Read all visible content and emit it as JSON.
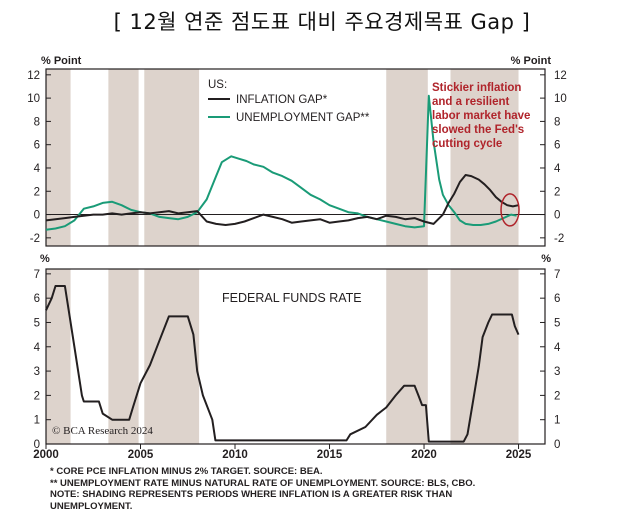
{
  "page_title": "[ 12월 연준 점도표 대비 주요경제목표 Gap ]",
  "colors": {
    "inflation": "#231f20",
    "unemployment": "#1a9b77",
    "shade": "#ddd3cc",
    "annotation": "#b0242b",
    "axis": "#231f20"
  },
  "chart_data": [
    {
      "type": "line",
      "units_left": "% Point",
      "units_right": "% Point",
      "ylim": [
        -2.7,
        12.5
      ],
      "yticks": [
        -2,
        0,
        2,
        4,
        6,
        8,
        10,
        12
      ],
      "legend_title": "US:",
      "series": [
        {
          "name": "INFLATION GAP*",
          "color": "#231f20",
          "points": [
            [
              2000.0,
              -0.5
            ],
            [
              2000.5,
              -0.4
            ],
            [
              2001.0,
              -0.3
            ],
            [
              2001.5,
              -0.2
            ],
            [
              2002.0,
              -0.1
            ],
            [
              2002.5,
              0.0
            ],
            [
              2003.0,
              0.0
            ],
            [
              2003.5,
              0.1
            ],
            [
              2004.0,
              0.0
            ],
            [
              2004.5,
              0.1
            ],
            [
              2005.0,
              0.2
            ],
            [
              2005.5,
              0.1
            ],
            [
              2006.0,
              0.2
            ],
            [
              2006.5,
              0.3
            ],
            [
              2007.0,
              0.1
            ],
            [
              2007.5,
              0.2
            ],
            [
              2008.0,
              0.3
            ],
            [
              2008.5,
              -0.6
            ],
            [
              2009.0,
              -0.8
            ],
            [
              2009.5,
              -0.9
            ],
            [
              2010.0,
              -0.8
            ],
            [
              2010.5,
              -0.6
            ],
            [
              2011.0,
              -0.3
            ],
            [
              2011.5,
              0.0
            ],
            [
              2012.0,
              -0.2
            ],
            [
              2012.5,
              -0.4
            ],
            [
              2013.0,
              -0.7
            ],
            [
              2013.5,
              -0.6
            ],
            [
              2014.0,
              -0.5
            ],
            [
              2014.5,
              -0.4
            ],
            [
              2015.0,
              -0.7
            ],
            [
              2015.5,
              -0.6
            ],
            [
              2016.0,
              -0.5
            ],
            [
              2016.5,
              -0.3
            ],
            [
              2017.0,
              -0.2
            ],
            [
              2017.5,
              -0.4
            ],
            [
              2018.0,
              -0.1
            ],
            [
              2018.5,
              -0.2
            ],
            [
              2019.0,
              -0.4
            ],
            [
              2019.5,
              -0.3
            ],
            [
              2020.0,
              -0.6
            ],
            [
              2020.5,
              -0.8
            ],
            [
              2021.0,
              0.0
            ],
            [
              2021.3,
              1.0
            ],
            [
              2021.6,
              1.8
            ],
            [
              2021.9,
              2.8
            ],
            [
              2022.2,
              3.4
            ],
            [
              2022.5,
              3.3
            ],
            [
              2022.9,
              3.0
            ],
            [
              2023.2,
              2.6
            ],
            [
              2023.5,
              2.1
            ],
            [
              2023.8,
              1.5
            ],
            [
              2024.1,
              1.1
            ],
            [
              2024.4,
              0.8
            ],
            [
              2024.7,
              0.7
            ],
            [
              2025.0,
              0.8
            ]
          ]
        },
        {
          "name": "UNEMPLOYMENT GAP**",
          "color": "#1a9b77",
          "points": [
            [
              2000.0,
              -1.3
            ],
            [
              2000.5,
              -1.2
            ],
            [
              2001.0,
              -1.0
            ],
            [
              2001.5,
              -0.5
            ],
            [
              2002.0,
              0.5
            ],
            [
              2002.5,
              0.7
            ],
            [
              2003.0,
              1.0
            ],
            [
              2003.5,
              1.1
            ],
            [
              2004.0,
              0.8
            ],
            [
              2004.5,
              0.4
            ],
            [
              2005.0,
              0.2
            ],
            [
              2005.5,
              0.1
            ],
            [
              2006.0,
              -0.2
            ],
            [
              2006.5,
              -0.3
            ],
            [
              2007.0,
              -0.4
            ],
            [
              2007.5,
              -0.2
            ],
            [
              2008.0,
              0.2
            ],
            [
              2008.5,
              1.3
            ],
            [
              2009.0,
              3.3
            ],
            [
              2009.3,
              4.5
            ],
            [
              2009.8,
              5.0
            ],
            [
              2010.2,
              4.8
            ],
            [
              2010.6,
              4.6
            ],
            [
              2011.0,
              4.3
            ],
            [
              2011.5,
              4.1
            ],
            [
              2012.0,
              3.6
            ],
            [
              2012.5,
              3.3
            ],
            [
              2013.0,
              2.9
            ],
            [
              2013.5,
              2.3
            ],
            [
              2014.0,
              1.7
            ],
            [
              2014.5,
              1.3
            ],
            [
              2015.0,
              0.8
            ],
            [
              2015.5,
              0.5
            ],
            [
              2016.0,
              0.2
            ],
            [
              2016.5,
              0.1
            ],
            [
              2017.0,
              -0.2
            ],
            [
              2017.5,
              -0.4
            ],
            [
              2018.0,
              -0.6
            ],
            [
              2018.5,
              -0.8
            ],
            [
              2019.0,
              -1.0
            ],
            [
              2019.5,
              -1.1
            ],
            [
              2020.0,
              -1.0
            ],
            [
              2020.25,
              10.2
            ],
            [
              2020.5,
              6.3
            ],
            [
              2020.8,
              3.0
            ],
            [
              2021.0,
              1.7
            ],
            [
              2021.3,
              0.8
            ],
            [
              2021.6,
              0.2
            ],
            [
              2021.9,
              -0.5
            ],
            [
              2022.2,
              -0.8
            ],
            [
              2022.6,
              -0.9
            ],
            [
              2023.0,
              -0.9
            ],
            [
              2023.4,
              -0.8
            ],
            [
              2023.8,
              -0.6
            ],
            [
              2024.2,
              -0.3
            ],
            [
              2024.6,
              0.0
            ],
            [
              2024.9,
              -0.1
            ]
          ]
        }
      ],
      "annotation": [
        "Stickier inflation",
        "and a resilient",
        "labor market have",
        "slowed the Fed's",
        "cutting cycle"
      ]
    },
    {
      "type": "line",
      "title": "FEDERAL FUNDS RATE",
      "units_left": "%",
      "units_right": "%",
      "ylim": [
        0,
        7.2
      ],
      "yticks": [
        0,
        1,
        2,
        3,
        4,
        5,
        6,
        7
      ],
      "xlim": [
        2000,
        2026.4
      ],
      "xticks": [
        2000,
        2005,
        2010,
        2015,
        2020,
        2025
      ],
      "series": [
        {
          "name": "Federal Funds Rate",
          "color": "#231f20",
          "points": [
            [
              2000.0,
              5.5
            ],
            [
              2000.3,
              6.0
            ],
            [
              2000.5,
              6.5
            ],
            [
              2001.0,
              6.5
            ],
            [
              2001.2,
              5.5
            ],
            [
              2001.5,
              4.0
            ],
            [
              2001.9,
              2.0
            ],
            [
              2002.0,
              1.75
            ],
            [
              2002.8,
              1.75
            ],
            [
              2003.0,
              1.25
            ],
            [
              2003.5,
              1.0
            ],
            [
              2004.4,
              1.0
            ],
            [
              2004.6,
              1.5
            ],
            [
              2005.0,
              2.5
            ],
            [
              2005.5,
              3.25
            ],
            [
              2006.0,
              4.25
            ],
            [
              2006.5,
              5.25
            ],
            [
              2007.5,
              5.25
            ],
            [
              2007.8,
              4.5
            ],
            [
              2008.0,
              3.0
            ],
            [
              2008.3,
              2.0
            ],
            [
              2008.8,
              1.0
            ],
            [
              2008.96,
              0.15
            ],
            [
              2015.9,
              0.15
            ],
            [
              2016.1,
              0.4
            ],
            [
              2016.9,
              0.7
            ],
            [
              2017.5,
              1.2
            ],
            [
              2018.0,
              1.5
            ],
            [
              2018.5,
              2.0
            ],
            [
              2018.95,
              2.4
            ],
            [
              2019.5,
              2.4
            ],
            [
              2019.7,
              2.0
            ],
            [
              2019.9,
              1.6
            ],
            [
              2020.1,
              1.6
            ],
            [
              2020.25,
              0.1
            ],
            [
              2022.1,
              0.1
            ],
            [
              2022.3,
              0.4
            ],
            [
              2022.6,
              1.8
            ],
            [
              2022.9,
              3.2
            ],
            [
              2023.1,
              4.4
            ],
            [
              2023.4,
              5.0
            ],
            [
              2023.6,
              5.33
            ],
            [
              2024.65,
              5.33
            ],
            [
              2024.8,
              4.85
            ],
            [
              2025.0,
              4.5
            ]
          ]
        }
      ]
    }
  ],
  "shading": [
    [
      2000.0,
      2001.3
    ],
    [
      2003.3,
      2004.9
    ],
    [
      2005.2,
      2008.1
    ],
    [
      2018.0,
      2020.2
    ],
    [
      2021.4,
      2025.0
    ]
  ],
  "credit": "© BCA Research 2024",
  "notes": [
    "* CORE PCE INFLATION MINUS 2% TARGET. SOURCE: BEA.",
    "** UNEMPLOYMENT RATE MINUS NATURAL RATE OF UNEMPLOYMENT. SOURCE: BLS, CBO.",
    "NOTE: SHADING REPRESENTS PERIODS WHERE INFLATION IS A GREATER RISK THAN",
    "UNEMPLOYMENT."
  ]
}
